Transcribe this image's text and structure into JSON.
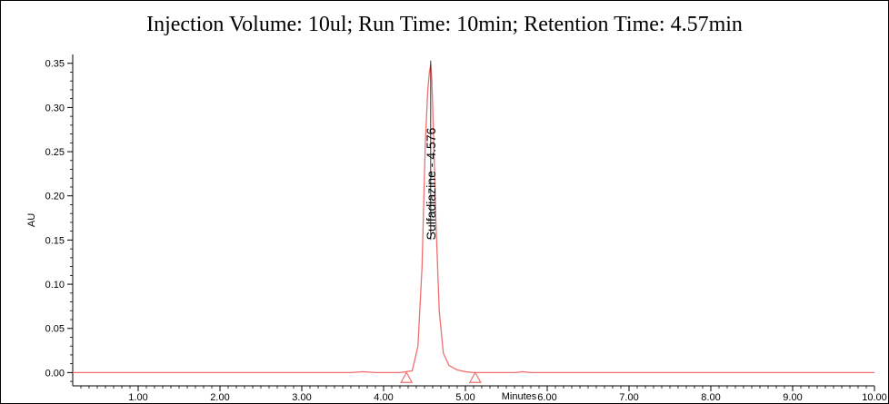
{
  "title": "Injection Volume: 10ul; Run Time: 10min; Retention Time: 4.57min",
  "chart_data": {
    "type": "line",
    "xlabel": "Minutes",
    "ylabel": "AU",
    "xlim": [
      0.2,
      10.0
    ],
    "ylim": [
      -0.015,
      0.36
    ],
    "x_ticks": [
      1.0,
      2.0,
      3.0,
      4.0,
      5.0,
      6.0,
      7.0,
      8.0,
      9.0,
      10.0
    ],
    "x_tick_labels": [
      "1.00",
      "2.00",
      "3.00",
      "4.00",
      "5.00",
      "6.00",
      "7.00",
      "8.00",
      "9.00",
      "10.00"
    ],
    "y_ticks": [
      0.0,
      0.05,
      0.1,
      0.15,
      0.2,
      0.25,
      0.3,
      0.35
    ],
    "y_tick_labels": [
      "0.00",
      "0.05",
      "0.10",
      "0.15",
      "0.20",
      "0.25",
      "0.30",
      "0.35"
    ],
    "grid": false,
    "line_color": "#f07070",
    "series": [
      {
        "x": [
          0.2,
          1.0,
          2.0,
          3.0,
          3.6,
          3.75,
          3.9,
          4.2,
          4.35,
          4.42,
          4.47,
          4.51,
          4.54,
          4.56,
          4.576,
          4.59,
          4.61,
          4.64,
          4.68,
          4.73,
          4.8,
          4.9,
          5.0,
          5.1,
          5.6,
          5.7,
          5.8,
          6.5,
          7.5,
          8.5,
          9.3,
          10.0
        ],
        "y": [
          0.0,
          0.0,
          0.0,
          0.0,
          0.0,
          0.001,
          0.0,
          0.0,
          0.002,
          0.03,
          0.12,
          0.26,
          0.32,
          0.34,
          0.349,
          0.33,
          0.27,
          0.17,
          0.07,
          0.022,
          0.008,
          0.003,
          0.001,
          0.0,
          0.0,
          0.001,
          0.0,
          0.0,
          0.0,
          0.0,
          0.0,
          0.0
        ]
      }
    ],
    "peak_annotation": {
      "text": "Sulfadiazine - 4.576",
      "x": 4.576,
      "y": 0.349
    },
    "baseline_markers": [
      {
        "x": 4.28,
        "y": -0.007
      },
      {
        "x": 5.12,
        "y": -0.007
      }
    ]
  }
}
